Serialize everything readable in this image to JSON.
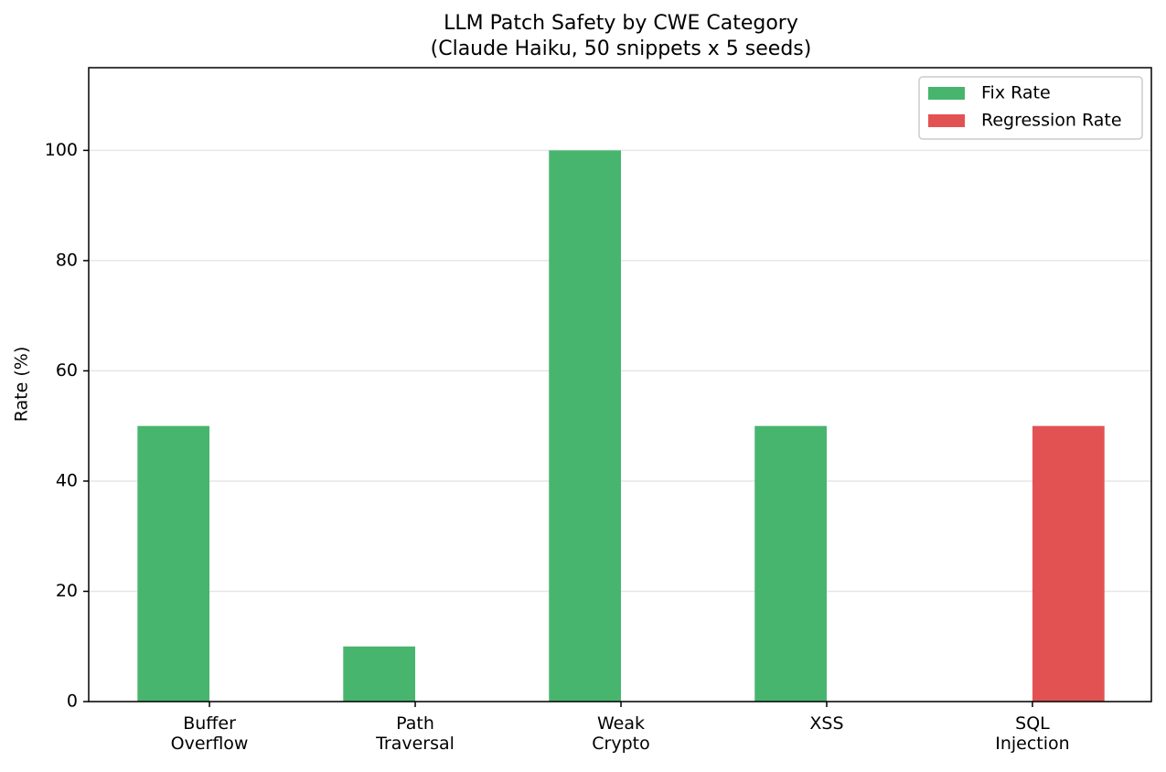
{
  "chart_data": {
    "type": "bar",
    "title": "LLM Patch Safety by CWE Category",
    "subtitle": "(Claude Haiku, 50 snippets x 5 seeds)",
    "y_label": "Rate (%)",
    "categories": [
      "Buffer\nOverflow",
      "Path\nTraversal",
      "Weak\nCrypto",
      "XSS",
      "SQL\nInjection"
    ],
    "series": [
      {
        "name": "Fix Rate",
        "color": "#48b56e",
        "values": [
          50,
          10,
          100,
          50,
          0
        ]
      },
      {
        "name": "Regression Rate",
        "color": "#e35252",
        "values": [
          0,
          0,
          0,
          0,
          50
        ]
      }
    ],
    "ylim": [
      0,
      115
    ],
    "yticks": [
      0,
      20,
      40,
      60,
      80,
      100
    ],
    "grid": true,
    "legend": "upper right"
  }
}
